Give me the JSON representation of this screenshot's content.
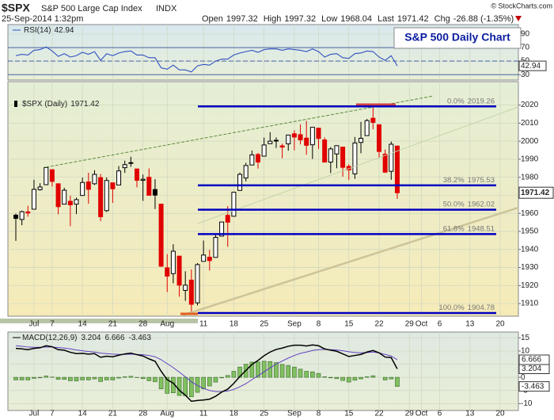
{
  "header": {
    "symbol": "$SPX",
    "name": "S&P 500 Large Cap Index",
    "exchange": "INDX",
    "datetime": "25-Sep-2014 1:32pm",
    "quote": [
      {
        "label": "Open",
        "value": 1997.32
      },
      {
        "label": "High",
        "value": 1997.32
      },
      {
        "label": "Low",
        "value": 1968.04
      },
      {
        "label": "Last",
        "value": 1971.42
      },
      {
        "label": "Chg",
        "value": "-26.88 (-1.35%)"
      }
    ],
    "copyright": "© StockCharts.com"
  },
  "chart_data": [
    {
      "type": "candlestick",
      "title": "S&P 500 Daily Chart",
      "legend": "$SPX (Daily)",
      "x": [
        "2014-06-26",
        "2014-06-27",
        "2014-06-30",
        "2014-07-01",
        "2014-07-02",
        "2014-07-03",
        "2014-07-07",
        "2014-07-08",
        "2014-07-09",
        "2014-07-10",
        "2014-07-11",
        "2014-07-14",
        "2014-07-15",
        "2014-07-16",
        "2014-07-17",
        "2014-07-18",
        "2014-07-21",
        "2014-07-22",
        "2014-07-23",
        "2014-07-24",
        "2014-07-25",
        "2014-07-28",
        "2014-07-29",
        "2014-07-30",
        "2014-07-31",
        "2014-08-01",
        "2014-08-04",
        "2014-08-05",
        "2014-08-06",
        "2014-08-07",
        "2014-08-08",
        "2014-08-11",
        "2014-08-12",
        "2014-08-13",
        "2014-08-14",
        "2014-08-15",
        "2014-08-18",
        "2014-08-19",
        "2014-08-20",
        "2014-08-21",
        "2014-08-22",
        "2014-08-25",
        "2014-08-26",
        "2014-08-27",
        "2014-08-28",
        "2014-08-29",
        "2014-09-02",
        "2014-09-03",
        "2014-09-04",
        "2014-09-05",
        "2014-09-08",
        "2014-09-09",
        "2014-09-10",
        "2014-09-11",
        "2014-09-12",
        "2014-09-15",
        "2014-09-16",
        "2014-09-17",
        "2014-09-18",
        "2014-09-19",
        "2014-09-22",
        "2014-09-23",
        "2014-09-24",
        "2014-09-25"
      ],
      "ohlc": [
        [
          1959,
          1959.9,
          1944.7,
          1957.2
        ],
        [
          1956.6,
          1961.5,
          1953.4,
          1960.9
        ],
        [
          1960.8,
          1964.2,
          1958.2,
          1960.2
        ],
        [
          1962.3,
          1978.6,
          1962.3,
          1973.3
        ],
        [
          1973.1,
          1976.7,
          1972.6,
          1974.6
        ],
        [
          1975.9,
          1985.6,
          1975.9,
          1985.4
        ],
        [
          1984.2,
          1984.2,
          1974.8,
          1977.7
        ],
        [
          1976.4,
          1976.4,
          1959.5,
          1963.7
        ],
        [
          1965.1,
          1974.2,
          1965.1,
          1972.8
        ],
        [
          1966.7,
          1969.8,
          1952.9,
          1964.7
        ],
        [
          1965.1,
          1968.7,
          1959.6,
          1967.6
        ],
        [
          1969.9,
          1979.8,
          1969.9,
          1977.1
        ],
        [
          1977.4,
          1982.5,
          1965.3,
          1973.3
        ],
        [
          1976.4,
          1983.9,
          1975.7,
          1981.6
        ],
        [
          1979.8,
          1981.8,
          1955.6,
          1958.1
        ],
        [
          1961.5,
          1979.9,
          1960.8,
          1978.2
        ],
        [
          1976.9,
          1976.9,
          1965.8,
          1973.6
        ],
        [
          1975.7,
          1986.2,
          1975.7,
          1983.5
        ],
        [
          1985.3,
          1989.2,
          1982.4,
          1987
        ],
        [
          1988.1,
          1991.4,
          1985.8,
          1988
        ],
        [
          1984.6,
          1984.6,
          1974.4,
          1978.3
        ],
        [
          1978.3,
          1981.5,
          1966.9,
          1978.9
        ],
        [
          1980,
          1984.9,
          1969.9,
          1970
        ],
        [
          1973.2,
          1978.9,
          1962.4,
          1970.1
        ],
        [
          1965.1,
          1965.1,
          1930.3,
          1930.7
        ],
        [
          1929.8,
          1937.4,
          1916.4,
          1925.2
        ],
        [
          1926.6,
          1942.9,
          1921.2,
          1939
        ],
        [
          1936.3,
          1936.3,
          1913.8,
          1920.2
        ],
        [
          1917.3,
          1927.9,
          1911.5,
          1920.2
        ],
        [
          1923,
          1928.9,
          1904.8,
          1909.6
        ],
        [
          1910.4,
          1932.4,
          1909,
          1931.6
        ],
        [
          1933.4,
          1944.9,
          1933.4,
          1936.9
        ],
        [
          1935.7,
          1939.7,
          1928.3,
          1933.8
        ],
        [
          1935.6,
          1948.4,
          1935.6,
          1946.7
        ],
        [
          1947.4,
          1955.2,
          1947.4,
          1955.2
        ],
        [
          1958.9,
          1964,
          1941.5,
          1955.1
        ],
        [
          1958.4,
          1972,
          1958.4,
          1971.7
        ],
        [
          1972.7,
          1982.6,
          1972.7,
          1981.6
        ],
        [
          1979.6,
          1988,
          1977.7,
          1986.5
        ],
        [
          1986.8,
          1994.8,
          1986.8,
          1992.4
        ],
        [
          1992.6,
          1993.5,
          1984.8,
          1988.4
        ],
        [
          1991.7,
          2002,
          1991.7,
          1997.9
        ],
        [
          1998.6,
          2005,
          1998.6,
          2000
        ],
        [
          2000.5,
          2002.1,
          1996.2,
          2000.1
        ],
        [
          1997.4,
          1998.6,
          1990.5,
          1996.7
        ],
        [
          1998.5,
          2003.4,
          1994.7,
          2003.4
        ],
        [
          2004.1,
          2006.1,
          1994.9,
          2002.3
        ],
        [
          2003.6,
          2009.3,
          1998.2,
          2000.7
        ],
        [
          2001.7,
          2011.2,
          1992.5,
          1997.7
        ],
        [
          1998,
          2007.7,
          1990.1,
          2007.7
        ],
        [
          2007.2,
          2007.2,
          1995.6,
          2001.5
        ],
        [
          2000.7,
          2002.1,
          1988.4,
          1988.4
        ],
        [
          1988.4,
          1996.7,
          1982.3,
          1995.7
        ],
        [
          1992.9,
          1997.7,
          1985,
          1997.5
        ],
        [
          1996.7,
          1996.7,
          1980.3,
          1985.5
        ],
        [
          1986,
          1987.2,
          1978.5,
          1984.1
        ],
        [
          1981.9,
          2002.3,
          1979.1,
          1999
        ],
        [
          1999.3,
          2010.7,
          1993.3,
          2001.6
        ],
        [
          2003.1,
          2012.3,
          2003.1,
          2011.4
        ],
        [
          2012.7,
          2019.3,
          2006.6,
          2010.4
        ],
        [
          2009.1,
          2009.1,
          1991,
          1994.3
        ],
        [
          1992.8,
          1995.4,
          1982.4,
          1982.8
        ],
        [
          1983.3,
          1999.8,
          1978.6,
          1998.3
        ],
        [
          1997.32,
          1997.32,
          1968.04,
          1971.42
        ]
      ],
      "up_color": "#000000",
      "down_color": "#e00000",
      "ylim": [
        1903,
        2033
      ],
      "yticks": [
        1910,
        1920,
        1930,
        1940,
        1950,
        1960,
        1970,
        1980,
        1990,
        2000,
        2010,
        2020
      ],
      "xticks": [
        {
          "value": "2014-07-01",
          "label": "Jul"
        },
        {
          "value": "2014-07-07",
          "label": "7"
        },
        {
          "value": "2014-07-14",
          "label": "14"
        },
        {
          "value": "2014-07-21",
          "label": "21"
        },
        {
          "value": "2014-07-28",
          "label": "28"
        },
        {
          "value": "2014-08-01",
          "label": "Aug"
        },
        {
          "value": "2014-08-11",
          "label": "11"
        },
        {
          "value": "2014-08-18",
          "label": "18"
        },
        {
          "value": "2014-08-25",
          "label": "25"
        },
        {
          "value": "2014-09-02",
          "label": "Sep"
        },
        {
          "value": "2014-09-08",
          "label": "8"
        },
        {
          "value": "2014-09-15",
          "label": "15"
        },
        {
          "value": "2014-09-22",
          "label": "22"
        },
        {
          "value": "2014-09-29",
          "label": "29"
        },
        {
          "value": "2014-10-01",
          "label": "Oct"
        },
        {
          "value": "2014-10-06",
          "label": "6"
        },
        {
          "value": "2014-10-13",
          "label": "13"
        },
        {
          "value": "2014-10-20",
          "label": "20"
        }
      ],
      "grid": true,
      "fib_levels": [
        {
          "label": "0.0%",
          "value": 2019.26
        },
        {
          "label": "38.2%",
          "value": 1975.53
        },
        {
          "label": "50.0%",
          "value": 1962.02
        },
        {
          "label": "61.8%",
          "value": 1948.51
        },
        {
          "label": "100.0%",
          "value": 1904.78
        }
      ],
      "fib_color": "#0000c0"
    },
    {
      "type": "line",
      "legend": "RSI(14)",
      "color": "#3050c0",
      "values": [
        58,
        60,
        59,
        66,
        67,
        71,
        65,
        57,
        61,
        56,
        58,
        63,
        60,
        64,
        51,
        61,
        58,
        62,
        64,
        65,
        59,
        59,
        55,
        55,
        40,
        38,
        44,
        37,
        37,
        34,
        43,
        45,
        44,
        50,
        53,
        53,
        59,
        62,
        64,
        66,
        63,
        67,
        68,
        68,
        66,
        68,
        67,
        66,
        64,
        68,
        64,
        56,
        60,
        61,
        55,
        54,
        61,
        62,
        65,
        64,
        56,
        51,
        58,
        42.94
      ],
      "ylim": [
        22,
        104
      ],
      "yticks": [
        30,
        50,
        70,
        90
      ],
      "levels": [
        30,
        50,
        70
      ]
    },
    {
      "type": "macd",
      "legend": "MACD(12,26,9)",
      "series": [
        {
          "color": "#000000",
          "values": [
            11,
            10.8,
            10.5,
            11,
            11.2,
            12,
            11.6,
            10.5,
            10.3,
            9.5,
            9,
            9.1,
            8.8,
            9,
            7.6,
            8,
            7.8,
            8.4,
            8.9,
            9.2,
            8.6,
            8.1,
            7,
            6.1,
            2.3,
            -0.9,
            -2.2,
            -4.9,
            -6.8,
            -9.1,
            -8.8,
            -8.6,
            -8.3,
            -7.2,
            -5.6,
            -4.5,
            -2.3,
            0.3,
            2.6,
            4.9,
            6.4,
            8.2,
            9.6,
            10.6,
            11.1,
            11.8,
            12.2,
            12.2,
            11.9,
            12.3,
            12,
            10.8,
            10.3,
            9.9,
            8.9,
            7.9,
            8.3,
            8.7,
            9.6,
            10.2,
            9.3,
            7.7,
            7.5,
            3.204
          ]
        },
        {
          "color": "#6040c0",
          "values": [
            12,
            11.8,
            11.5,
            11.4,
            11.4,
            11.5,
            11.5,
            11.3,
            11.1,
            10.8,
            10.4,
            10.1,
            9.8,
            9.6,
            9.2,
            9,
            8.8,
            8.7,
            8.7,
            8.8,
            8.7,
            8.6,
            8.3,
            7.8,
            6.7,
            5.2,
            3.7,
            2,
            0.2,
            -1.7,
            -3.1,
            -4.2,
            -5,
            -5.4,
            -5.4,
            -5.2,
            -4.6,
            -3.6,
            -2.4,
            -0.9,
            0.6,
            2.1,
            3.6,
            5,
            6.2,
            7.3,
            8.3,
            9.1,
            9.6,
            10.2,
            10.5,
            10.6,
            10.5,
            10.4,
            10.1,
            9.7,
            9.4,
            9.3,
            9.4,
            9.6,
            9.3,
            8.7,
            8.1,
            6.666
          ]
        },
        {
          "color": "#80c060",
          "values": [
            -1,
            -1,
            -1,
            -0.4,
            -0.2,
            0.5,
            0.1,
            -0.8,
            -0.8,
            -1.3,
            -1.4,
            -1,
            -1,
            -0.6,
            -1.6,
            -1,
            -1,
            -0.3,
            0.2,
            0.4,
            -0.1,
            -0.5,
            -1.3,
            -1.7,
            -4.4,
            -6.1,
            -5.9,
            -6.9,
            -7,
            -7.4,
            -5.7,
            -4.4,
            -3.3,
            -1.8,
            -0.2,
            0.7,
            2.3,
            3.9,
            5,
            5.8,
            5.8,
            6.1,
            6,
            5.6,
            4.9,
            4.5,
            3.9,
            3.1,
            2.3,
            2.1,
            1.5,
            0.2,
            -0.2,
            -0.5,
            -1.2,
            -1.8,
            -1.1,
            -0.6,
            0.2,
            0.6,
            0,
            -1,
            -0.6,
            -3.463
          ]
        }
      ],
      "ylim": [
        -12.6,
        17.2
      ],
      "yticks": [
        -10,
        -5,
        0,
        5,
        10,
        15
      ]
    }
  ]
}
